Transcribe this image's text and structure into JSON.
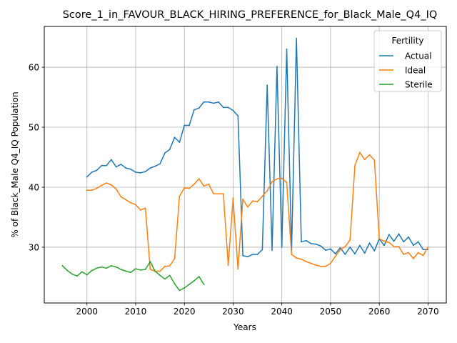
{
  "chart_data": {
    "type": "line",
    "title": "Score_1_in_FAVOUR_BLACK_HIRING_PREFERENCE_for_Black_Male_Q4_IQ",
    "xlabel": "Years",
    "ylabel": "% of Black_Male Q4_IQ Population",
    "xlim": [
      1991.25,
      2073.75
    ],
    "ylim": [
      20.7,
      66.8
    ],
    "xticks": [
      2000,
      2010,
      2020,
      2030,
      2040,
      2050,
      2060,
      2070
    ],
    "yticks": [
      30,
      40,
      50,
      60
    ],
    "grid": true,
    "legend": {
      "title": "Fertility",
      "placement": "top-right"
    },
    "series": [
      {
        "name": "Actual",
        "color": "#1f77b4",
        "x": [
          2000,
          2001,
          2002,
          2003,
          2004,
          2005,
          2006,
          2007,
          2008,
          2009,
          2010,
          2011,
          2012,
          2013,
          2014,
          2015,
          2016,
          2017,
          2018,
          2019,
          2020,
          2021,
          2022,
          2023,
          2024,
          2025,
          2026,
          2027,
          2028,
          2029,
          2030,
          2031,
          2032,
          2033,
          2034,
          2035,
          2036,
          2037,
          2038,
          2039,
          2040,
          2041,
          2042,
          2043,
          2044,
          2045,
          2046,
          2047,
          2048,
          2049,
          2050,
          2051,
          2052,
          2053,
          2054,
          2055,
          2056,
          2057,
          2058,
          2059,
          2060,
          2061,
          2062,
          2063,
          2064,
          2065,
          2066,
          2067,
          2068,
          2069,
          2070
        ],
        "y": [
          41.7,
          42.5,
          42.8,
          43.6,
          43.6,
          44.6,
          43.4,
          43.8,
          43.2,
          43.0,
          42.5,
          42.4,
          42.6,
          43.2,
          43.5,
          43.9,
          45.7,
          46.3,
          48.3,
          47.5,
          50.3,
          50.3,
          52.9,
          53.2,
          54.2,
          54.2,
          54.0,
          54.2,
          53.3,
          53.3,
          52.8,
          51.9,
          28.6,
          28.4,
          28.8,
          28.8,
          29.6,
          57.0,
          29.5,
          60.1,
          30.0,
          63.0,
          29.5,
          64.8,
          30.9,
          31.1,
          30.6,
          30.5,
          30.2,
          29.5,
          29.7,
          28.9,
          29.9,
          28.8,
          30.0,
          28.9,
          30.3,
          29.0,
          30.7,
          29.4,
          31.4,
          30.3,
          32.1,
          31.0,
          32.2,
          30.9,
          31.7,
          30.3,
          30.9,
          29.6,
          29.6
        ]
      },
      {
        "name": "Ideal",
        "color": "#ff7f0e",
        "x": [
          2000,
          2001,
          2002,
          2003,
          2004,
          2005,
          2006,
          2007,
          2008,
          2009,
          2010,
          2011,
          2012,
          2013,
          2014,
          2015,
          2016,
          2017,
          2018,
          2019,
          2020,
          2021,
          2022,
          2023,
          2024,
          2025,
          2026,
          2027,
          2028,
          2029,
          2030,
          2031,
          2032,
          2033,
          2034,
          2035,
          2036,
          2037,
          2038,
          2039,
          2040,
          2041,
          2042,
          2043,
          2044,
          2045,
          2046,
          2047,
          2048,
          2049,
          2050,
          2051,
          2052,
          2053,
          2054,
          2055,
          2056,
          2057,
          2058,
          2059,
          2060,
          2061,
          2062,
          2063,
          2064,
          2065,
          2066,
          2067,
          2068,
          2069,
          2070
        ],
        "y": [
          39.5,
          39.5,
          39.8,
          40.3,
          40.7,
          40.4,
          39.7,
          38.4,
          37.9,
          37.4,
          37.1,
          36.2,
          36.5,
          26.3,
          26.0,
          26.0,
          26.8,
          26.9,
          28.1,
          38.5,
          39.9,
          39.8,
          40.5,
          41.4,
          40.2,
          40.5,
          38.9,
          38.9,
          38.9,
          27.0,
          38.2,
          26.4,
          38.0,
          36.7,
          37.7,
          37.6,
          38.5,
          39.4,
          40.9,
          41.4,
          41.5,
          40.8,
          28.8,
          28.2,
          28.0,
          27.6,
          27.3,
          27.0,
          26.8,
          26.8,
          27.3,
          28.5,
          29.6,
          30.1,
          31.2,
          43.6,
          45.8,
          44.6,
          45.4,
          44.5,
          31.4,
          31.0,
          30.8,
          30.1,
          30.1,
          28.8,
          29.1,
          28.1,
          29.1,
          28.6,
          30.0
        ]
      },
      {
        "name": "Sterile",
        "color": "#2ca02c",
        "x": [
          1995,
          1996,
          1997,
          1998,
          1999,
          2000,
          2001,
          2002,
          2003,
          2004,
          2005,
          2006,
          2007,
          2008,
          2009,
          2010,
          2011,
          2012,
          2013,
          2014,
          2015,
          2016,
          2017,
          2018,
          2019,
          2020,
          2021,
          2022,
          2023,
          2024
        ],
        "y": [
          26.9,
          26.1,
          25.5,
          25.2,
          25.9,
          25.4,
          26.1,
          26.5,
          26.7,
          26.5,
          26.9,
          26.7,
          26.3,
          26.0,
          25.8,
          26.4,
          26.2,
          26.3,
          27.6,
          26.0,
          25.3,
          24.7,
          25.3,
          23.9,
          22.8,
          23.2,
          23.8,
          24.4,
          25.1,
          23.8
        ]
      }
    ]
  }
}
